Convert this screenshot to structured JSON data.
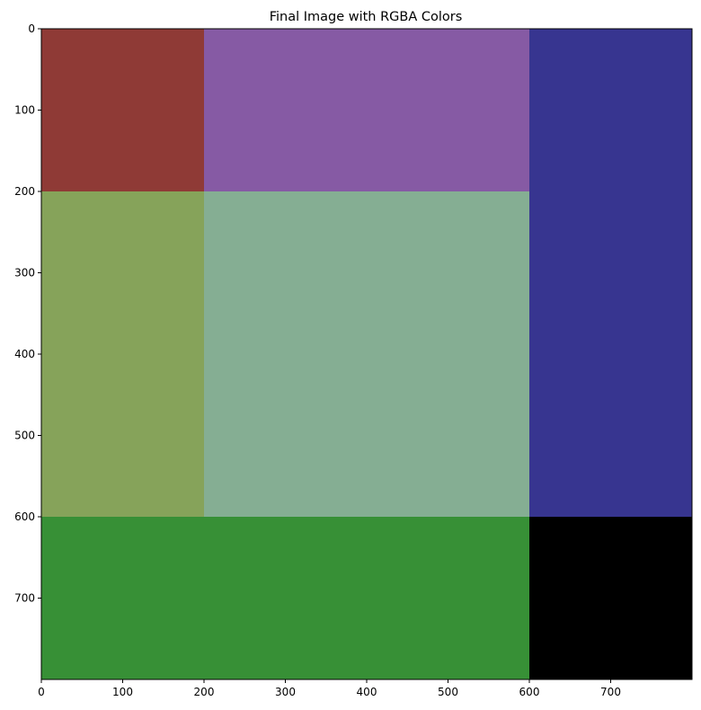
{
  "chart_data": {
    "type": "heatmap",
    "title": "Final Image with RGBA Colors",
    "xlabel": "",
    "ylabel": "",
    "xlim": [
      0,
      800
    ],
    "ylim": [
      800,
      0
    ],
    "grid": false,
    "x_ticks": [
      0,
      100,
      200,
      300,
      400,
      500,
      600,
      700
    ],
    "y_ticks": [
      0,
      100,
      200,
      300,
      400,
      500,
      600,
      700
    ],
    "regions": [
      {
        "name": "red-block",
        "x": [
          0,
          200
        ],
        "y": [
          0,
          200
        ],
        "color": "#8f3a36"
      },
      {
        "name": "purple-block",
        "x": [
          200,
          600
        ],
        "y": [
          0,
          200
        ],
        "color": "#865aa4"
      },
      {
        "name": "navy-block",
        "x": [
          600,
          800
        ],
        "y": [
          0,
          600
        ],
        "color": "#373590"
      },
      {
        "name": "olive-block",
        "x": [
          0,
          200
        ],
        "y": [
          200,
          600
        ],
        "color": "#86a35a"
      },
      {
        "name": "sage-block",
        "x": [
          200,
          600
        ],
        "y": [
          200,
          600
        ],
        "color": "#85ae93"
      },
      {
        "name": "green-block",
        "x": [
          0,
          600
        ],
        "y": [
          600,
          800
        ],
        "color": "#379036"
      },
      {
        "name": "black-block",
        "x": [
          600,
          800
        ],
        "y": [
          600,
          800
        ],
        "color": "#000000"
      }
    ]
  }
}
